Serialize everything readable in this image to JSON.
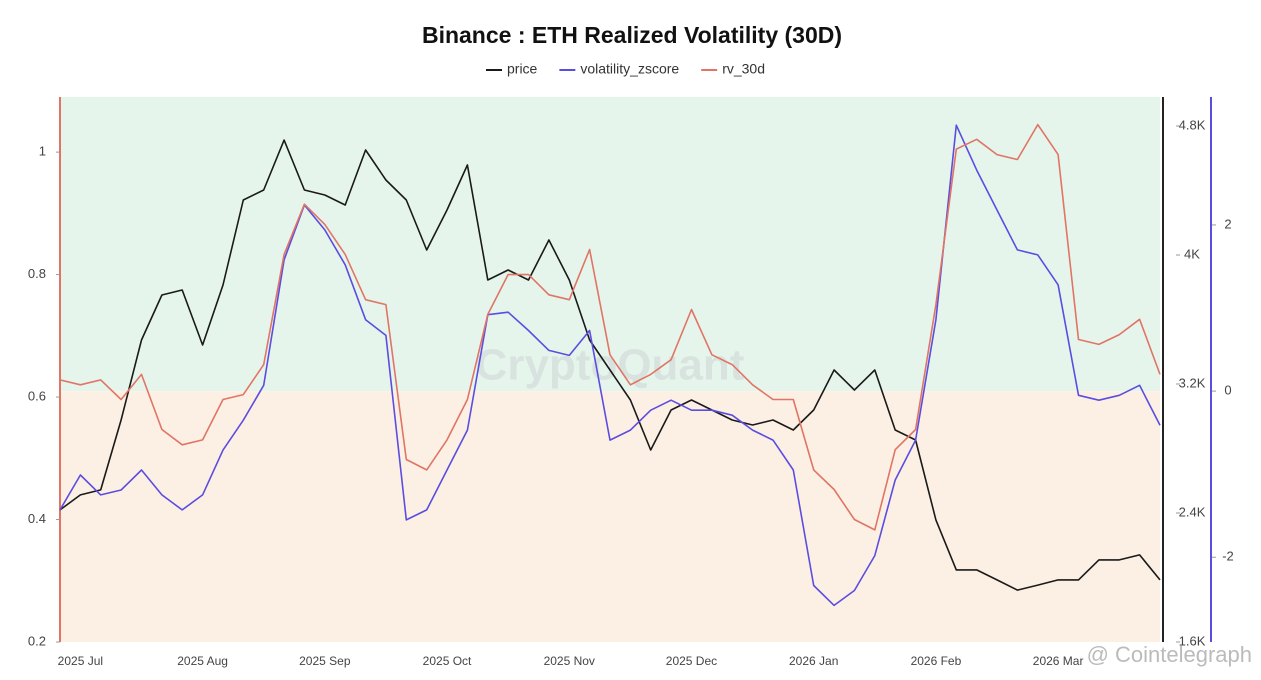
{
  "chart_data": {
    "type": "line",
    "title": "Binance : ETH Realized Volatility (30D)",
    "watermark": "CryptoQuant",
    "credit": "@ Cointelegraph",
    "categories": [
      null,
      "2025 Jul",
      null,
      null,
      null,
      null,
      null,
      "2025 Aug",
      null,
      null,
      null,
      null,
      null,
      "2025 Sep",
      null,
      null,
      null,
      null,
      null,
      "2025 Oct",
      null,
      null,
      null,
      null,
      null,
      "2025 Nov",
      null,
      null,
      null,
      null,
      null,
      "2025 Dec",
      null,
      null,
      null,
      null,
      null,
      "2026 Jan",
      null,
      null,
      null,
      null,
      null,
      "2026 Feb",
      null,
      null,
      null,
      null,
      null,
      "2026 Mar",
      null,
      null,
      null,
      null,
      null
    ],
    "series": [
      {
        "name": "price",
        "color": "#1a1a1a",
        "axis": "y2",
        "values": [
          2419,
          2512,
          2543,
          2977,
          3473,
          3752,
          3783,
          3442,
          3814,
          4341,
          4403,
          4713,
          4403,
          4372,
          4310,
          4651,
          4465,
          4341,
          4031,
          4279,
          4558,
          3845,
          3907,
          3845,
          4093,
          3845,
          3473,
          3287,
          3101,
          2791,
          3039,
          3101,
          3039,
          2977,
          2946,
          2977,
          2915,
          3039,
          3287,
          3163,
          3287,
          2915,
          2853,
          2357,
          2047,
          2047,
          1985,
          1922,
          1953,
          1985,
          1985,
          2109,
          2109,
          2140,
          1985
        ]
      },
      {
        "name": "volatility_zscore",
        "color": "#5b4de0",
        "axis": "y3",
        "values": [
          -1.43,
          -1.01,
          -1.25,
          -1.19,
          -0.95,
          -1.25,
          -1.43,
          -1.25,
          -0.71,
          -0.35,
          0.07,
          1.58,
          2.24,
          1.94,
          1.52,
          0.86,
          0.67,
          -1.55,
          -1.43,
          -0.95,
          -0.47,
          0.92,
          0.95,
          0.73,
          0.49,
          0.43,
          0.73,
          -0.59,
          -0.47,
          -0.23,
          -0.11,
          -0.23,
          -0.23,
          -0.29,
          -0.47,
          -0.59,
          -0.95,
          -2.34,
          -2.58,
          -2.4,
          -1.98,
          -1.07,
          -0.59,
          0.86,
          3.2,
          2.66,
          2.18,
          1.7,
          1.64,
          1.28,
          -0.05,
          -0.11,
          -0.05,
          0.07,
          -0.41
        ]
      },
      {
        "name": "rv_30d",
        "color": "#e07565",
        "axis": "y",
        "values": [
          0.628,
          0.62,
          0.628,
          0.596,
          0.637,
          0.547,
          0.522,
          0.53,
          0.596,
          0.604,
          0.653,
          0.833,
          0.915,
          0.882,
          0.833,
          0.759,
          0.751,
          0.498,
          0.481,
          0.53,
          0.596,
          0.735,
          0.8,
          0.8,
          0.767,
          0.759,
          0.841,
          0.669,
          0.62,
          0.637,
          0.661,
          0.743,
          0.669,
          0.653,
          0.62,
          0.596,
          0.596,
          0.481,
          0.449,
          0.4,
          0.383,
          0.514,
          0.547,
          0.751,
          1.005,
          1.021,
          0.996,
          0.988,
          1.045,
          0.996,
          0.694,
          0.686,
          0.702,
          0.727,
          0.637
        ]
      }
    ],
    "ylim": [
      0.2,
      1.09
    ],
    "yticks": [
      0.2,
      0.4,
      0.6,
      0.8,
      1
    ],
    "y2lim": [
      1600,
      4980
    ],
    "y2ticks": [
      {
        "value": 1600,
        "label": "1.6K"
      },
      {
        "value": 2400,
        "label": "2.4K"
      },
      {
        "value": 3200,
        "label": "3.2K"
      },
      {
        "value": 4000,
        "label": "4K"
      },
      {
        "value": 4800,
        "label": "4.8K"
      }
    ],
    "y3lim": [
      -3.02,
      3.54
    ],
    "y3ticks": [
      -2,
      0,
      2
    ],
    "grid": false
  }
}
